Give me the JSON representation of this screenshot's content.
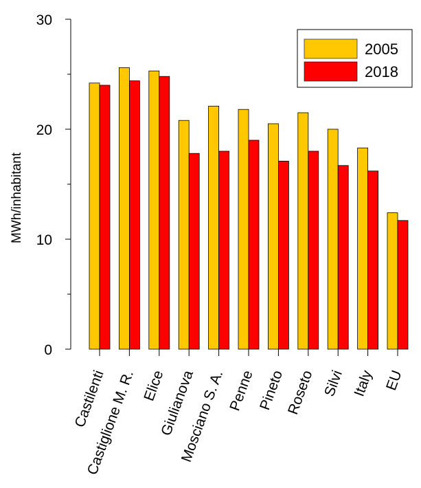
{
  "chart_data": {
    "type": "bar",
    "ylabel": "MWh/inhabitant",
    "xlabel": "",
    "ylim": [
      0,
      30
    ],
    "yticks": [
      0,
      10,
      20,
      30
    ],
    "categories": [
      "Castilenti",
      "Castiglione M. R.",
      "Elice",
      "Giulianova",
      "Mosciano S. A.",
      "Penne",
      "Pineto",
      "Roseto",
      "Silvi",
      "Italy",
      "EU"
    ],
    "series": [
      {
        "name": "2005",
        "color": "#FFC800",
        "values": [
          24.2,
          25.6,
          25.3,
          20.8,
          22.1,
          21.8,
          20.5,
          21.5,
          20.0,
          18.3,
          12.4
        ]
      },
      {
        "name": "2018",
        "color": "#FF0000",
        "values": [
          24.0,
          24.4,
          24.8,
          17.8,
          18.0,
          19.0,
          17.1,
          18.0,
          16.7,
          16.2,
          11.7
        ]
      }
    ],
    "legend_position": "top-right",
    "grid": false
  }
}
